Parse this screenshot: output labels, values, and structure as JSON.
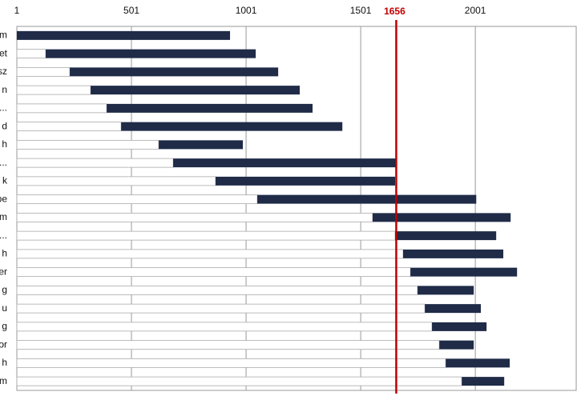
{
  "chart_data": {
    "type": "floating_bar",
    "categories": [
      "m",
      "et",
      "sz",
      "n",
      "al...",
      "d",
      "h",
      "sz...",
      "k",
      "pe",
      "m",
      "ns...",
      "h",
      "er",
      "g",
      "u",
      "g",
      "or",
      "h",
      "m"
    ],
    "starts": [
      1,
      127,
      232,
      323,
      393,
      456,
      620,
      683,
      868,
      1050,
      1553,
      1651,
      1686,
      1718,
      1749,
      1781,
      1812,
      1844,
      1872,
      1942
    ],
    "ends": [
      931,
      1043,
      1141,
      1235,
      1291,
      1421,
      987,
      1655,
      1651,
      2005,
      2155,
      2092,
      2123,
      2183,
      1994,
      2025,
      2050,
      1994,
      2151,
      2127
    ],
    "color": "#1f2b47",
    "base_color": "#ffffff",
    "xlim": [
      1,
      2441
    ],
    "xticks": [
      1,
      501,
      1001,
      1501,
      2001
    ],
    "grid": true,
    "reference_line": {
      "value": 1656,
      "color": "#c00000"
    }
  }
}
